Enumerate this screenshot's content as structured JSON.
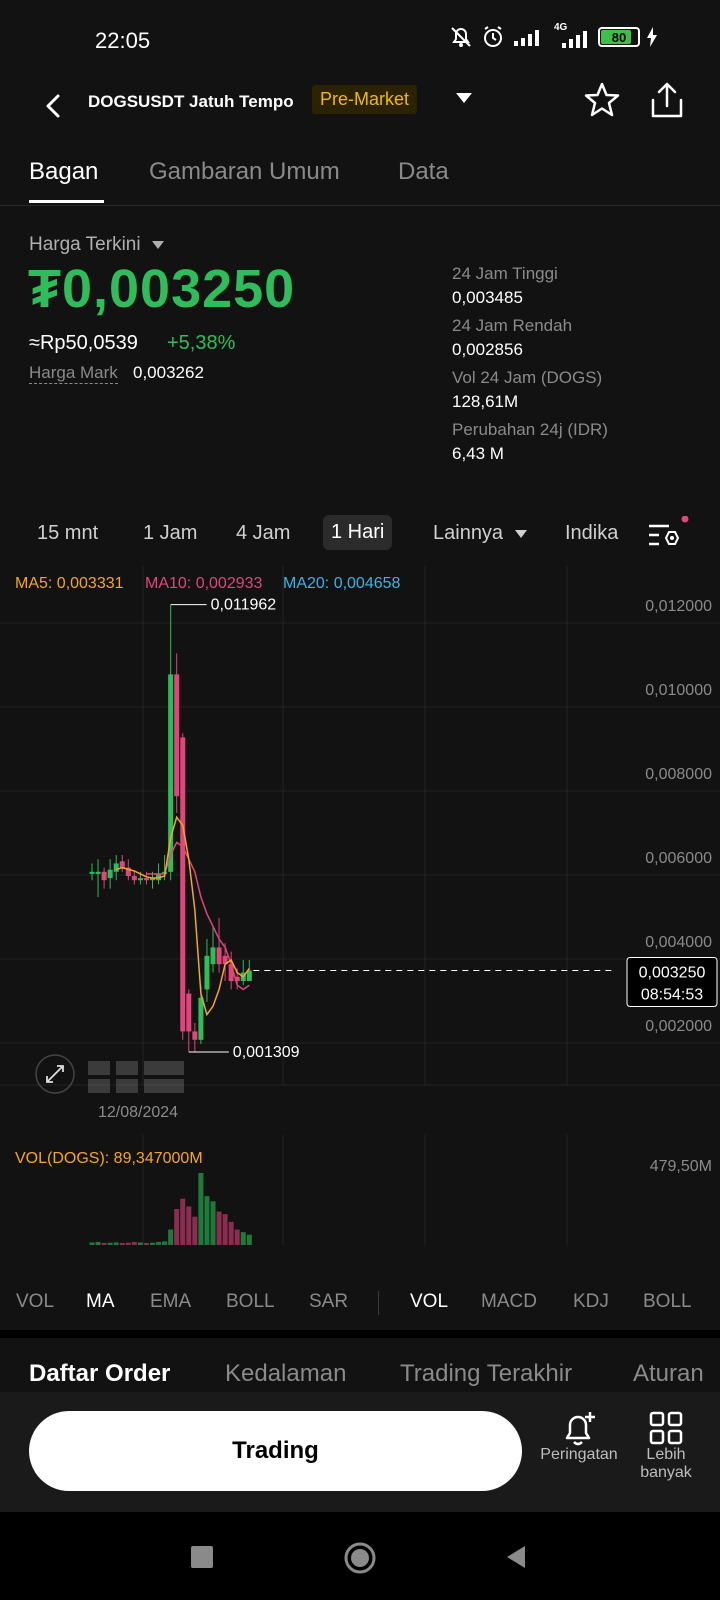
{
  "status_bar": {
    "time": "22:05",
    "network": "4G",
    "battery": "80"
  },
  "header": {
    "pair": "DOGSUSDT Jatuh Tempo",
    "badge": "Pre-Market"
  },
  "tabs": [
    {
      "label": "Bagan",
      "active": true
    },
    {
      "label": "Gambaran Umum",
      "active": false
    },
    {
      "label": "Data",
      "active": false
    }
  ],
  "price": {
    "label": "Harga Terkini",
    "last": "₮0,003250",
    "idr": "≈Rp50,0539",
    "change": "+5,38%",
    "mark_label": "Harga Mark",
    "mark_value": "0,003262"
  },
  "stats": [
    {
      "label": "24 Jam Tinggi",
      "value": "0,003485"
    },
    {
      "label": "24 Jam Rendah",
      "value": "0,002856"
    },
    {
      "label": "Vol 24 Jam (DOGS)",
      "value": "128,61M"
    },
    {
      "label": "Perubahan 24j (IDR)",
      "value": "6,43 M"
    }
  ],
  "intervals": [
    "15 mnt",
    "1 Jam",
    "4 Jam",
    "1 Hari",
    "Lainnya",
    "Indika"
  ],
  "active_interval": "1 Hari",
  "chart_data": {
    "type": "candlestick",
    "ma_legend": [
      {
        "label": "MA5: 0,003331",
        "color": "#f5a623"
      },
      {
        "label": "MA10: 0,002933",
        "color": "#e0457b"
      },
      {
        "label": "MA20: 0,004658",
        "color": "#3bb4e5"
      }
    ],
    "y_ticks": [
      "0,012000",
      "0,010000",
      "0,008000",
      "0,006000",
      "0,004000",
      "0,002000"
    ],
    "y_tick_values": [
      0.012,
      0.01,
      0.008,
      0.006,
      0.004,
      0.002
    ],
    "high_label": "0,011962",
    "low_label": "0,001309",
    "current_price": "0,003250",
    "countdown": "08:54:53",
    "x_label": "12/08/2024",
    "candles": [
      {
        "o": 0.00555,
        "c": 0.0056,
        "h": 0.0058,
        "l": 0.0054
      },
      {
        "o": 0.00555,
        "c": 0.0056,
        "h": 0.0059,
        "l": 0.005
      },
      {
        "o": 0.0056,
        "c": 0.0054,
        "h": 0.0057,
        "l": 0.0052
      },
      {
        "o": 0.00545,
        "c": 0.00565,
        "h": 0.0059,
        "l": 0.0052
      },
      {
        "o": 0.0056,
        "c": 0.0058,
        "h": 0.006,
        "l": 0.0054
      },
      {
        "o": 0.00585,
        "c": 0.0057,
        "h": 0.006,
        "l": 0.0056
      },
      {
        "o": 0.0057,
        "c": 0.0055,
        "h": 0.0059,
        "l": 0.0054
      },
      {
        "o": 0.0055,
        "c": 0.0054,
        "h": 0.0056,
        "l": 0.0053
      },
      {
        "o": 0.0054,
        "c": 0.00545,
        "h": 0.0056,
        "l": 0.0053
      },
      {
        "o": 0.00545,
        "c": 0.0054,
        "h": 0.0056,
        "l": 0.0053
      },
      {
        "o": 0.0054,
        "c": 0.00545,
        "h": 0.0056,
        "l": 0.0052
      },
      {
        "o": 0.0054,
        "c": 0.00555,
        "h": 0.0058,
        "l": 0.0053
      },
      {
        "o": 0.00555,
        "c": 0.0056,
        "h": 0.006,
        "l": 0.0054
      },
      {
        "o": 0.0056,
        "c": 0.0103,
        "h": 0.01196,
        "l": 0.0054
      },
      {
        "o": 0.0103,
        "c": 0.0074,
        "h": 0.0108,
        "l": 0.007
      },
      {
        "o": 0.0088,
        "c": 0.0018,
        "h": 0.0089,
        "l": 0.0016
      },
      {
        "o": 0.0027,
        "c": 0.0018,
        "h": 0.0028,
        "l": 0.00131
      },
      {
        "o": 0.0018,
        "c": 0.0016,
        "h": 0.002,
        "l": 0.00131
      },
      {
        "o": 0.0016,
        "c": 0.0026,
        "h": 0.0029,
        "l": 0.0015
      },
      {
        "o": 0.0028,
        "c": 0.0036,
        "h": 0.004,
        "l": 0.0025
      },
      {
        "o": 0.0034,
        "c": 0.0038,
        "h": 0.0043,
        "l": 0.0032
      },
      {
        "o": 0.0038,
        "c": 0.0034,
        "h": 0.0045,
        "l": 0.0032
      },
      {
        "o": 0.0036,
        "c": 0.0034,
        "h": 0.0039,
        "l": 0.003
      },
      {
        "o": 0.0034,
        "c": 0.003,
        "h": 0.0037,
        "l": 0.0028
      },
      {
        "o": 0.0031,
        "c": 0.003,
        "h": 0.0033,
        "l": 0.0028
      },
      {
        "o": 0.003,
        "c": 0.0032,
        "h": 0.0035,
        "l": 0.0029
      },
      {
        "o": 0.003,
        "c": 0.00325,
        "h": 0.0035,
        "l": 0.003
      }
    ],
    "ma5": [
      null,
      null,
      null,
      null,
      0.00565,
      0.0057,
      0.00566,
      0.00562,
      0.00555,
      0.00548,
      0.00545,
      0.00546,
      0.0055,
      0.0064,
      0.0069,
      0.0067,
      0.0059,
      0.0047,
      0.0027,
      0.0022,
      0.0024,
      0.0028,
      0.0034,
      0.0035,
      0.0032,
      0.0031,
      0.0033
    ],
    "ma10": [
      null,
      null,
      null,
      null,
      null,
      null,
      null,
      null,
      null,
      0.00555,
      0.00555,
      0.00555,
      0.00555,
      0.006,
      0.0063,
      0.0062,
      0.0059,
      0.0056,
      0.005,
      0.0046,
      0.0043,
      0.004,
      0.0038,
      0.0034,
      0.0029,
      0.0028,
      0.0029
    ],
    "volume": {
      "label": "VOL(DOGS): 89,347000M",
      "max_label": "479,50M",
      "values": [
        10,
        12,
        8,
        9,
        10,
        8,
        9,
        12,
        10,
        8,
        9,
        12,
        14,
        60,
        140,
        180,
        150,
        110,
        280,
        190,
        170,
        130,
        120,
        90,
        60,
        50,
        40
      ]
    }
  },
  "indicator_tabs": {
    "main": [
      "VOL",
      "MA",
      "EMA",
      "BOLL",
      "SAR"
    ],
    "main_active": "MA",
    "sub": [
      "VOL",
      "MACD",
      "KDJ",
      "BOLL"
    ],
    "sub_active": "VOL"
  },
  "bottom_tabs": [
    "Daftar Order",
    "Kedalaman",
    "Trading Terakhir",
    "Aturan"
  ],
  "actions": {
    "trade": "Trading",
    "alert": "Peringatan",
    "more": "Lebih banyak"
  },
  "colors": {
    "up": "#2ebd5a",
    "down": "#e0457b",
    "accent": "#f0b90b"
  }
}
